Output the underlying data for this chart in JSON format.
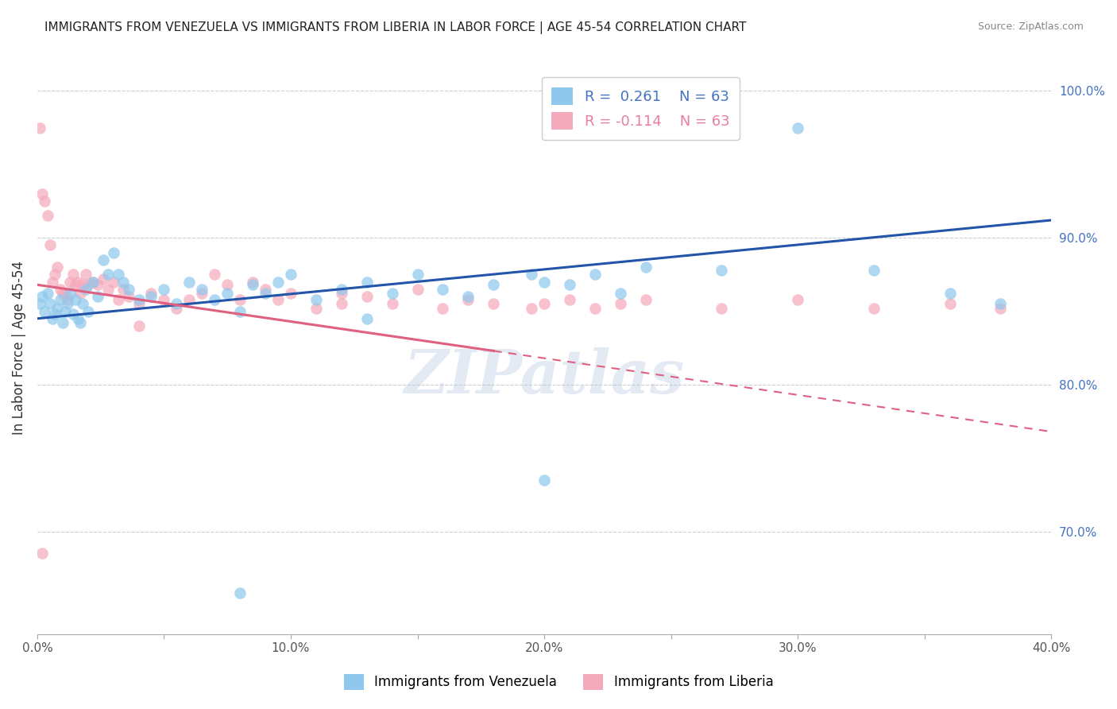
{
  "title": "IMMIGRANTS FROM VENEZUELA VS IMMIGRANTS FROM LIBERIA IN LABOR FORCE | AGE 45-54 CORRELATION CHART",
  "source": "Source: ZipAtlas.com",
  "ylabel": "In Labor Force | Age 45-54",
  "xlim": [
    0.0,
    0.4
  ],
  "ylim": [
    0.63,
    1.02
  ],
  "xticks": [
    0.0,
    0.05,
    0.1,
    0.15,
    0.2,
    0.25,
    0.3,
    0.35,
    0.4
  ],
  "xticklabels": [
    "0.0%",
    "",
    "10.0%",
    "",
    "20.0%",
    "",
    "30.0%",
    "",
    "40.0%"
  ],
  "yticks_right": [
    0.7,
    0.8,
    0.9,
    1.0
  ],
  "yticklabels_right": [
    "70.0%",
    "80.0%",
    "90.0%",
    "100.0%"
  ],
  "R_venezuela": 0.261,
  "R_liberia": -0.114,
  "N": 63,
  "color_venezuela": "#8FC8EC",
  "color_liberia": "#F5AABB",
  "color_line_venezuela": "#2255AA",
  "color_line_liberia": "#E06080",
  "watermark": "ZIPatlas",
  "venezuela_line_x0": 0.0,
  "venezuela_line_y0": 0.845,
  "venezuela_line_x1": 0.4,
  "venezuela_line_y1": 0.912,
  "liberia_line_x0": 0.0,
  "liberia_line_y0": 0.868,
  "liberia_line_x1": 0.4,
  "liberia_line_y1": 0.768,
  "venezuela_x": [
    0.001,
    0.002,
    0.003,
    0.004,
    0.005,
    0.006,
    0.007,
    0.008,
    0.009,
    0.01,
    0.011,
    0.012,
    0.013,
    0.014,
    0.015,
    0.016,
    0.017,
    0.018,
    0.019,
    0.02,
    0.022,
    0.024,
    0.026,
    0.028,
    0.03,
    0.032,
    0.034,
    0.036,
    0.04,
    0.045,
    0.05,
    0.055,
    0.06,
    0.065,
    0.07,
    0.075,
    0.08,
    0.085,
    0.09,
    0.095,
    0.1,
    0.11,
    0.12,
    0.13,
    0.14,
    0.15,
    0.16,
    0.17,
    0.18,
    0.195,
    0.2,
    0.21,
    0.22,
    0.23,
    0.24,
    0.27,
    0.3,
    0.33,
    0.36,
    0.38,
    0.08,
    0.13,
    0.2
  ],
  "venezuela_y": [
    0.855,
    0.86,
    0.85,
    0.862,
    0.855,
    0.845,
    0.848,
    0.852,
    0.858,
    0.842,
    0.85,
    0.855,
    0.862,
    0.848,
    0.858,
    0.845,
    0.842,
    0.855,
    0.865,
    0.85,
    0.87,
    0.86,
    0.885,
    0.875,
    0.89,
    0.875,
    0.87,
    0.865,
    0.858,
    0.86,
    0.865,
    0.855,
    0.87,
    0.865,
    0.858,
    0.862,
    0.85,
    0.868,
    0.862,
    0.87,
    0.875,
    0.858,
    0.865,
    0.87,
    0.862,
    0.875,
    0.865,
    0.86,
    0.868,
    0.875,
    0.87,
    0.868,
    0.875,
    0.862,
    0.88,
    0.878,
    0.975,
    0.878,
    0.862,
    0.855,
    0.658,
    0.845,
    0.735
  ],
  "liberia_x": [
    0.001,
    0.002,
    0.003,
    0.004,
    0.005,
    0.006,
    0.007,
    0.008,
    0.009,
    0.01,
    0.011,
    0.012,
    0.013,
    0.014,
    0.015,
    0.016,
    0.017,
    0.018,
    0.019,
    0.02,
    0.022,
    0.024,
    0.026,
    0.028,
    0.03,
    0.032,
    0.034,
    0.036,
    0.04,
    0.045,
    0.05,
    0.055,
    0.06,
    0.065,
    0.07,
    0.075,
    0.08,
    0.085,
    0.09,
    0.095,
    0.1,
    0.11,
    0.12,
    0.13,
    0.14,
    0.15,
    0.16,
    0.17,
    0.18,
    0.195,
    0.2,
    0.21,
    0.22,
    0.23,
    0.24,
    0.27,
    0.3,
    0.33,
    0.36,
    0.38,
    0.002,
    0.04,
    0.12
  ],
  "liberia_y": [
    0.975,
    0.93,
    0.925,
    0.915,
    0.895,
    0.87,
    0.875,
    0.88,
    0.865,
    0.862,
    0.862,
    0.858,
    0.87,
    0.875,
    0.868,
    0.87,
    0.862,
    0.868,
    0.875,
    0.868,
    0.87,
    0.868,
    0.872,
    0.865,
    0.87,
    0.858,
    0.865,
    0.86,
    0.855,
    0.862,
    0.858,
    0.852,
    0.858,
    0.862,
    0.875,
    0.868,
    0.858,
    0.87,
    0.865,
    0.858,
    0.862,
    0.852,
    0.862,
    0.86,
    0.855,
    0.865,
    0.852,
    0.858,
    0.855,
    0.852,
    0.855,
    0.858,
    0.852,
    0.855,
    0.858,
    0.852,
    0.858,
    0.852,
    0.855,
    0.852,
    0.685,
    0.84,
    0.855
  ]
}
